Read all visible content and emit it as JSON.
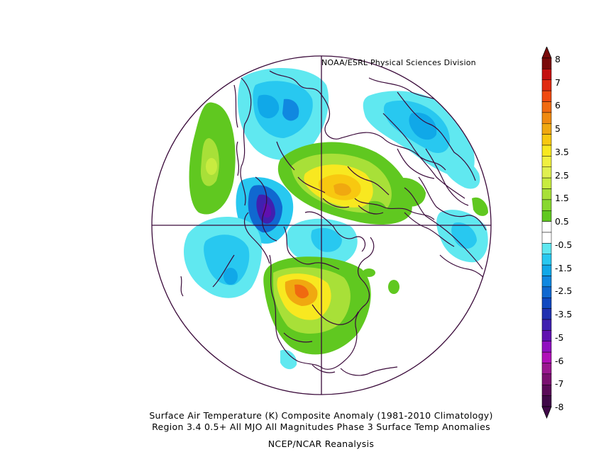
{
  "credit": "NOAA/ESRL Physical Sciences Division",
  "caption": {
    "line1": "Surface Air Temperature (K) Composite Anomaly (1981-2010 Climatology)",
    "line2": "Region 3.4 0.5+ All MJO All Magnitudes Phase 3 Surface Temp Anomalies",
    "line3": "NCEP/NCAR Reanalysis"
  },
  "colorbar": {
    "labels": [
      "8",
      "7",
      "6",
      "5",
      "3.5",
      "2.5",
      "1.5",
      "0.5",
      "-0.5",
      "-1.5",
      "-2.5",
      "-3.5",
      "-5",
      "-6",
      "-7",
      "-8"
    ],
    "colors": [
      "#7a0a0a",
      "#c41010",
      "#e02a10",
      "#f04a10",
      "#f06a10",
      "#f08a10",
      "#f0a810",
      "#f8c810",
      "#f8e820",
      "#f0f040",
      "#e0f050",
      "#c8ec40",
      "#a8e038",
      "#88d830",
      "#60c820",
      "#ffffff",
      "#ffffff",
      "#60e8f0",
      "#28c8f0",
      "#10a8e8",
      "#1088e0",
      "#1068d0",
      "#1048c0",
      "#2030b0",
      "#4020b0",
      "#6010b0",
      "#9010c0",
      "#b010b8",
      "#9a1890",
      "#7a1070",
      "#5a0a58",
      "#400848"
    ]
  },
  "map_regions": [
    {
      "name": "pacific-warm-anomaly",
      "anomaly": "+0.5 to +2.5"
    },
    {
      "name": "siberia-warm-anomaly",
      "anomaly": "+1.5 to +5"
    },
    {
      "name": "north-america-warm-anomaly",
      "anomaly": "+1.5 to +6"
    },
    {
      "name": "scandinavia-cold-anomaly",
      "anomaly": "-0.5 to -2.5"
    },
    {
      "name": "greenland-cold-anomaly",
      "anomaly": "-0.5 to -2.5"
    },
    {
      "name": "alaska-cold-anomaly",
      "anomaly": "-1.5 to -5"
    },
    {
      "name": "north-pacific-cold-anomaly",
      "anomaly": "-0.5 to -2.5"
    },
    {
      "name": "north-africa-cold-anomaly",
      "anomaly": "-0.5 to -1.5"
    }
  ]
}
